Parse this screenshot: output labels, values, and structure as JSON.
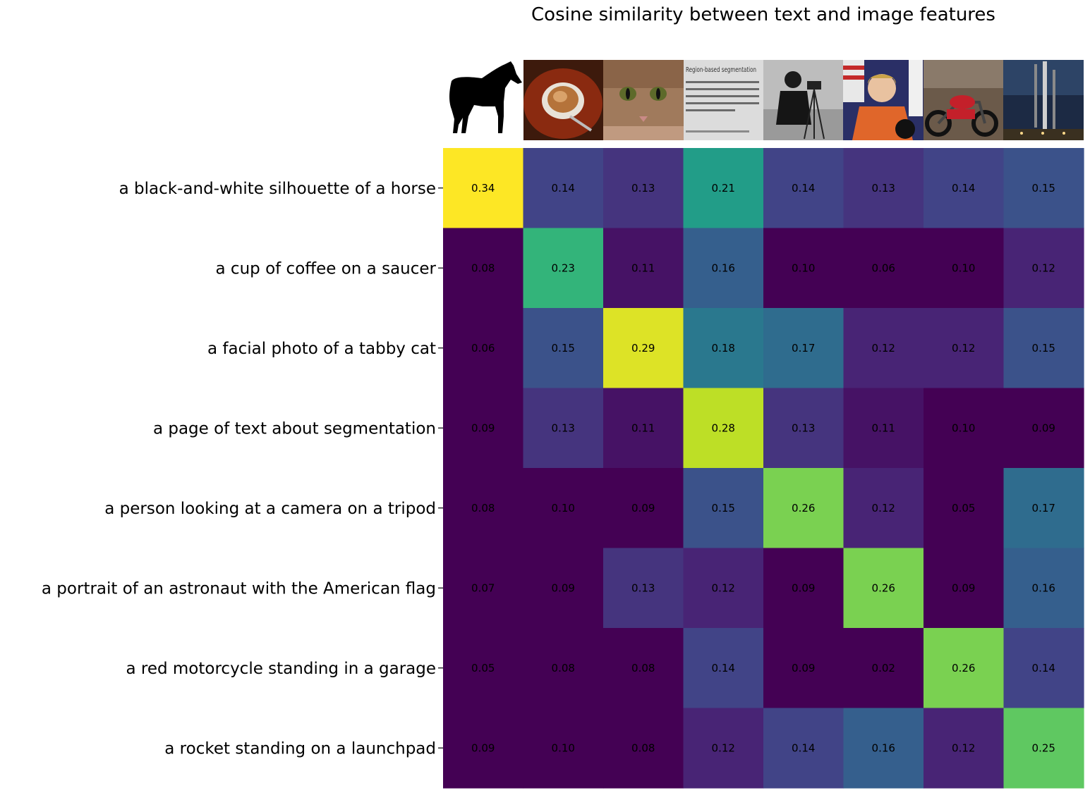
{
  "chart_data": {
    "type": "heatmap",
    "title": "Cosine similarity between text and image features",
    "rows": [
      "a black-and-white silhouette of a horse",
      "a cup of coffee on a saucer",
      "a facial photo of a tabby cat",
      "a page of text about segmentation",
      "a person looking at a camera on a tripod",
      "a portrait of an astronaut with the American flag",
      "a red motorcycle standing in a garage",
      "a rocket standing on a launchpad"
    ],
    "columns": [
      "horse",
      "coffee",
      "cat",
      "page",
      "camera",
      "astronaut",
      "motorcycle",
      "rocket"
    ],
    "values": [
      [
        0.34,
        0.14,
        0.13,
        0.21,
        0.14,
        0.13,
        0.14,
        0.15
      ],
      [
        0.08,
        0.23,
        0.11,
        0.16,
        0.1,
        0.06,
        0.1,
        0.12
      ],
      [
        0.06,
        0.15,
        0.29,
        0.18,
        0.17,
        0.12,
        0.12,
        0.15
      ],
      [
        0.09,
        0.13,
        0.11,
        0.28,
        0.13,
        0.11,
        0.1,
        0.09
      ],
      [
        0.08,
        0.1,
        0.09,
        0.15,
        0.26,
        0.12,
        0.05,
        0.17
      ],
      [
        0.07,
        0.09,
        0.13,
        0.12,
        0.09,
        0.26,
        0.09,
        0.16
      ],
      [
        0.05,
        0.08,
        0.08,
        0.14,
        0.09,
        0.02,
        0.26,
        0.14
      ],
      [
        0.09,
        0.1,
        0.08,
        0.12,
        0.14,
        0.16,
        0.12,
        0.25
      ]
    ],
    "vmin": 0.1,
    "vmax": 0.3,
    "colormap": "viridis",
    "grid": false,
    "legend": false
  },
  "thumbnails": {
    "page_text_heading": "Region-based segmentation"
  },
  "colors": {
    "horse": "#000000",
    "saucer": "#8a2a10",
    "coffee": "#b5733a",
    "cat": "#a07a5c",
    "suit": "#e0662a",
    "motorcycle": "#c4202a",
    "night": "#1c2a44"
  }
}
